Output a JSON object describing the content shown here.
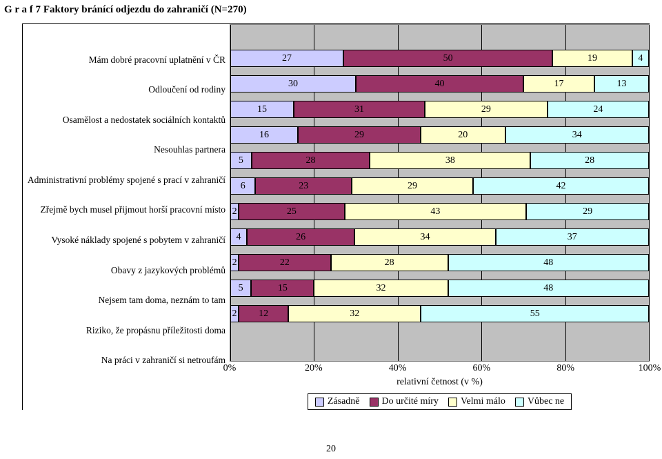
{
  "title_prefix": "G r a f 7",
  "title_rest": " Faktory bránící odjezdu do zahraničí (N=270)",
  "page_number": "20",
  "chart": {
    "type": "stacked-bar-horizontal",
    "background_color": "#c0c0c0",
    "grid_color": "#000000",
    "border_color": "#808080",
    "value_fontsize": 14,
    "label_fontsize": 13.5,
    "xaxis": {
      "min": 0,
      "max": 100,
      "tick_step": 20,
      "ticks": [
        "0%",
        "20%",
        "40%",
        "60%",
        "80%",
        "100%"
      ],
      "title": "relativní četnost (v %)",
      "title_fontsize": 14
    },
    "series": [
      {
        "name": "Zásadně",
        "color": "#ccccff"
      },
      {
        "name": "Do určité míry",
        "color": "#993366"
      },
      {
        "name": "Velmi málo",
        "color": "#ffffcc"
      },
      {
        "name": "Vůbec ne",
        "color": "#ccffff"
      }
    ],
    "categories": [
      {
        "label": "Mám dobré pracovní uplatnění v ČR",
        "values": [
          27,
          50,
          19,
          4
        ]
      },
      {
        "label": "Odloučení od rodiny",
        "values": [
          30,
          40,
          17,
          13
        ]
      },
      {
        "label": "Osamělost a nedostatek sociálních kontaktů",
        "values": [
          15,
          31,
          29,
          24
        ]
      },
      {
        "label": "Nesouhlas partnera",
        "values": [
          16,
          29,
          20,
          34
        ]
      },
      {
        "label": "Administrativní problémy spojené s prací v zahraničí",
        "values": [
          5,
          28,
          38,
          28
        ]
      },
      {
        "label": "Zřejmě bych musel přijmout horší pracovní místo",
        "values": [
          6,
          23,
          29,
          42
        ]
      },
      {
        "label": "Vysoké náklady spojené s pobytem v zahraničí",
        "values": [
          2,
          25,
          43,
          29
        ]
      },
      {
        "label": "Obavy z jazykových problémů",
        "values": [
          4,
          26,
          34,
          37
        ]
      },
      {
        "label": "Nejsem tam doma, neznám to tam",
        "values": [
          2,
          22,
          28,
          48
        ]
      },
      {
        "label": "Riziko, že propásnu příležitosti doma",
        "values": [
          5,
          15,
          32,
          48
        ]
      },
      {
        "label": "Na práci v zahraničí si netroufám",
        "values": [
          2,
          12,
          32,
          55
        ]
      }
    ],
    "legend": {
      "labels": [
        "Zásadně",
        "Do určité míry",
        "Velmi málo",
        "Vůbec ne"
      ]
    }
  }
}
